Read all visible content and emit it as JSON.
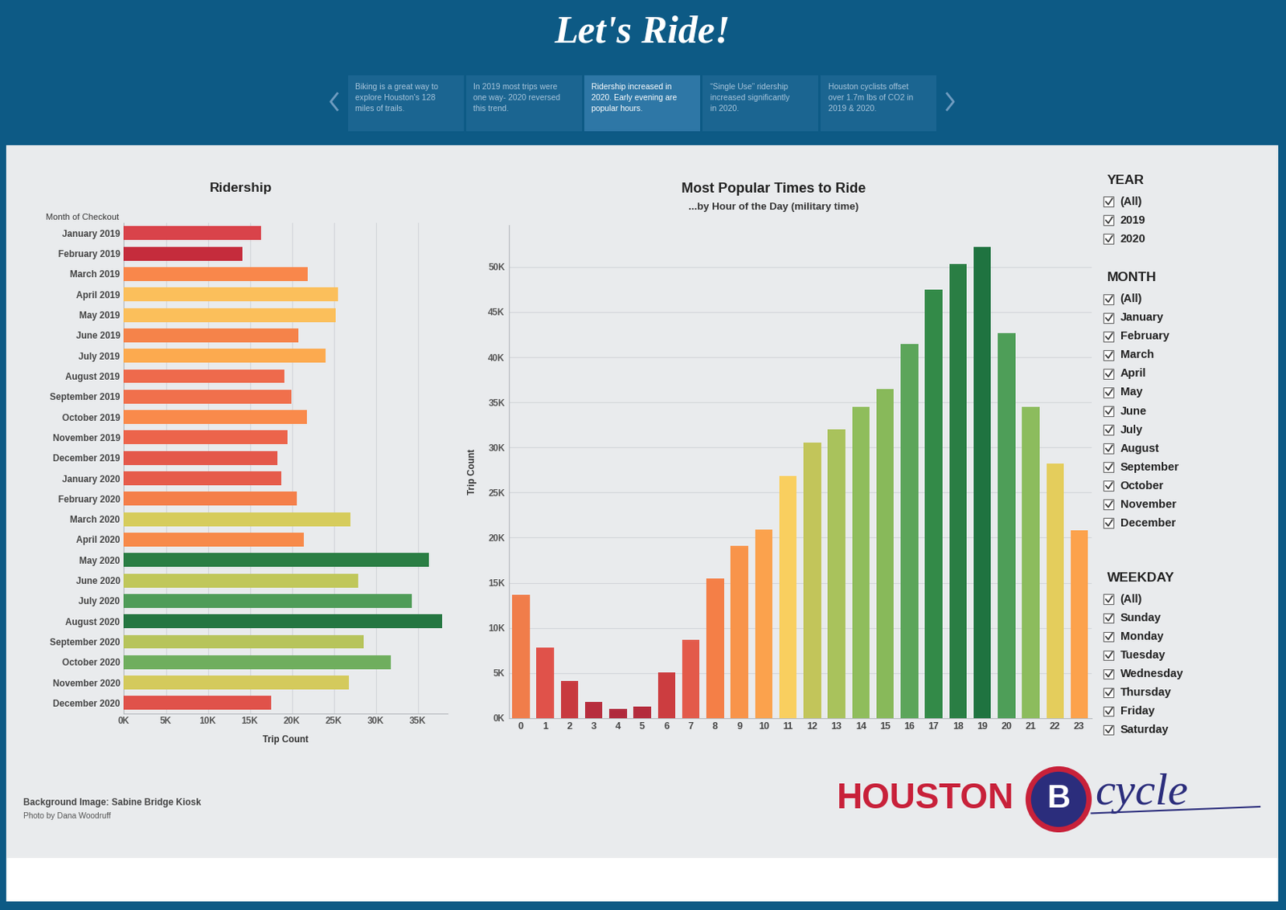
{
  "header": {
    "title": "Let's Ride!",
    "story_points": [
      {
        "caption": "Biking is a great way to explore Houston's 128 miles of trails.",
        "selected": false
      },
      {
        "caption": "In 2019 most trips were one way- 2020 reversed this trend.",
        "selected": false
      },
      {
        "caption": "Ridership increased in 2020. Early evening are popular hours.",
        "selected": true
      },
      {
        "caption": "“Single Use” ridership increased significantly in 2020.",
        "selected": false
      },
      {
        "caption": "Houston cyclists offset over 1.7m lbs of CO2 in 2019 & 2020.",
        "selected": false
      }
    ]
  },
  "chart_data": [
    {
      "type": "bar",
      "orientation": "horizontal",
      "title": "Ridership",
      "ylabel": "Month of Checkout",
      "xlabel": "Trip Count",
      "categories": [
        "January 2019",
        "February 2019",
        "March 2019",
        "April 2019",
        "May 2019",
        "June 2019",
        "July 2019",
        "August 2019",
        "September 2019",
        "October 2019",
        "November 2019",
        "December 2019",
        "January 2020",
        "February 2020",
        "March 2020",
        "April 2020",
        "May 2020",
        "June 2020",
        "July 2020",
        "August 2020",
        "September 2020",
        "October 2020",
        "November 2020",
        "December 2020"
      ],
      "values": [
        16300,
        14100,
        21900,
        25500,
        25200,
        20800,
        24000,
        19100,
        19900,
        21800,
        19500,
        18300,
        18700,
        20600,
        27000,
        21400,
        36300,
        27900,
        34300,
        37900,
        28500,
        31800,
        26800,
        17500
      ],
      "colors": [
        "#d9434a",
        "#c52c3c",
        "#f9874b",
        "#fbbf5b",
        "#fbbf5b",
        "#f5834a",
        "#fcaa4f",
        "#ee6a4c",
        "#f0704c",
        "#f98a4b",
        "#ec644b",
        "#e4584a",
        "#e65c4b",
        "#f47f4a",
        "#d6cc5c",
        "#f78a4a",
        "#2a7e44",
        "#c0c75a",
        "#4f9c58",
        "#247641",
        "#b7c45b",
        "#6fae5e",
        "#d4ca5c",
        "#e0524a"
      ],
      "xlim": [
        0,
        38500
      ],
      "xticks": [
        {
          "value": 0,
          "label": "0K"
        },
        {
          "value": 5000,
          "label": "5K"
        },
        {
          "value": 10000,
          "label": "10K"
        },
        {
          "value": 15000,
          "label": "15K"
        },
        {
          "value": 20000,
          "label": "20K"
        },
        {
          "value": 25000,
          "label": "25K"
        },
        {
          "value": 30000,
          "label": "30K"
        },
        {
          "value": 35000,
          "label": "35K"
        }
      ],
      "grid": true
    },
    {
      "type": "bar",
      "title": "Most Popular Times to Ride",
      "subtitle": "...by Hour of the Day (military time)",
      "ylabel": "Trip Count",
      "categories": [
        "0",
        "1",
        "2",
        "3",
        "4",
        "5",
        "6",
        "7",
        "8",
        "9",
        "10",
        "11",
        "12",
        "13",
        "14",
        "15",
        "16",
        "17",
        "18",
        "19",
        "20",
        "21",
        "22",
        "23"
      ],
      "values": [
        13700,
        7800,
        4100,
        1800,
        1000,
        1300,
        5100,
        8700,
        15500,
        19100,
        20900,
        26800,
        30500,
        32000,
        34500,
        36500,
        41500,
        47500,
        50300,
        52200,
        42700,
        34500,
        28200,
        20800
      ],
      "colors": [
        "#f07d4a",
        "#e0524a",
        "#c83a3f",
        "#b72d3d",
        "#b02a3c",
        "#b42c3c",
        "#cc3d40",
        "#e35a4a",
        "#f47f47",
        "#f8944a",
        "#fba24d",
        "#f9cf5f",
        "#c2c55a",
        "#a9c25c",
        "#8fbd5c",
        "#88b95a",
        "#5ca55a",
        "#338a48",
        "#2a7e44",
        "#1f7340",
        "#4e9e58",
        "#8cbc5d",
        "#e4cd5c",
        "#fca24c"
      ],
      "ylim": [
        0,
        54600
      ],
      "yticks": [
        {
          "value": 0,
          "label": "0K"
        },
        {
          "value": 5000,
          "label": "5K"
        },
        {
          "value": 10000,
          "label": "10K"
        },
        {
          "value": 15000,
          "label": "15K"
        },
        {
          "value": 20000,
          "label": "20K"
        },
        {
          "value": 25000,
          "label": "25K"
        },
        {
          "value": 30000,
          "label": "30K"
        },
        {
          "value": 35000,
          "label": "35K"
        },
        {
          "value": 40000,
          "label": "40K"
        },
        {
          "value": 45000,
          "label": "45K"
        },
        {
          "value": 50000,
          "label": "50K"
        }
      ],
      "grid": true
    }
  ],
  "filters": [
    {
      "title": "YEAR",
      "options": [
        "(All)",
        "2019",
        "2020"
      ]
    },
    {
      "title": "MONTH",
      "options": [
        "(All)",
        "January",
        "February",
        "March",
        "April",
        "May",
        "June",
        "July",
        "August",
        "September",
        "October",
        "November",
        "December"
      ]
    },
    {
      "title": "WEEKDAY",
      "options": [
        "(All)",
        "Sunday",
        "Monday",
        "Tuesday",
        "Wednesday",
        "Thursday",
        "Friday",
        "Saturday"
      ]
    }
  ],
  "credits": [
    "Background Image: Sabine Bridge Kiosk",
    "Photo by Dana Woodruff"
  ],
  "logo": {
    "text": "HOUSTON",
    "mark": "B",
    "script": "cycle"
  }
}
